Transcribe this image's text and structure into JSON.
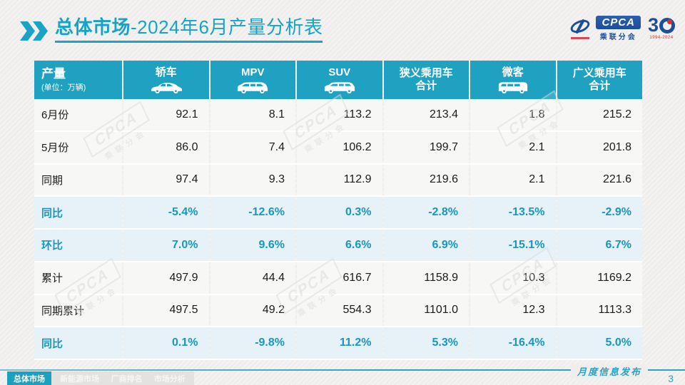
{
  "title": {
    "section": "总体市场",
    "rest": "-2024年6月产量分析表"
  },
  "logos": {
    "cpca_text": "CPCA",
    "cpca_sub": "乘联分会",
    "anniversary": "3",
    "anniversary_years": "1994-2024"
  },
  "watermark": {
    "text": "CPCA",
    "sub": "乘联分会"
  },
  "table": {
    "header": {
      "label": "产量",
      "unit": "(单位：万辆)",
      "columns": [
        {
          "label": "轿车",
          "label2": "",
          "icon": "sedan-icon"
        },
        {
          "label": "MPV",
          "label2": "",
          "icon": "mpv-icon"
        },
        {
          "label": "SUV",
          "label2": "",
          "icon": "suv-icon"
        },
        {
          "label": "狭义乘用车",
          "label2": "合计",
          "icon": ""
        },
        {
          "label": "微客",
          "label2": "",
          "icon": "van-icon"
        },
        {
          "label": "广义乘用车",
          "label2": "合计",
          "icon": ""
        }
      ]
    },
    "rows": [
      {
        "label": "6月份",
        "type": "value",
        "values": [
          "92.1",
          "8.1",
          "113.2",
          "213.4",
          "1.8",
          "215.2"
        ]
      },
      {
        "label": "5月份",
        "type": "value",
        "values": [
          "86.0",
          "7.4",
          "106.2",
          "199.7",
          "2.1",
          "201.8"
        ]
      },
      {
        "label": "同期",
        "type": "value",
        "values": [
          "97.4",
          "9.3",
          "112.9",
          "219.6",
          "2.1",
          "221.6"
        ]
      },
      {
        "label": "同比",
        "type": "percent",
        "values": [
          "-5.4%",
          "-12.6%",
          "0.3%",
          "-2.8%",
          "-13.5%",
          "-2.9%"
        ]
      },
      {
        "label": "环比",
        "type": "percent",
        "values": [
          "7.0%",
          "9.6%",
          "6.6%",
          "6.9%",
          "-15.1%",
          "6.7%"
        ]
      },
      {
        "label": "累计",
        "type": "value",
        "values": [
          "497.9",
          "44.4",
          "616.7",
          "1158.9",
          "10.3",
          "1169.2"
        ]
      },
      {
        "label": "同期累计",
        "type": "value",
        "values": [
          "497.5",
          "49.2",
          "554.3",
          "1101.0",
          "12.3",
          "1113.3"
        ]
      },
      {
        "label": "同比",
        "type": "percent",
        "values": [
          "0.1%",
          "-9.8%",
          "11.2%",
          "5.3%",
          "-16.4%",
          "5.0%"
        ]
      }
    ]
  },
  "footer": {
    "tabs": [
      {
        "label": "总体市场",
        "active": true
      },
      {
        "label": "新能源市场",
        "active": false
      },
      {
        "label": "厂商排名",
        "active": false
      },
      {
        "label": "市场分析",
        "active": false
      }
    ],
    "publication": "月度信息发布",
    "page_number": "3"
  },
  "colors": {
    "accent": "#1BA3C6",
    "header_bg": "#1FA2C1",
    "percent_row_bg": "#E7F1F8",
    "percent_text": "#1897C0",
    "logo_blue": "#1D4E9A",
    "logo_red": "#D0342C"
  }
}
